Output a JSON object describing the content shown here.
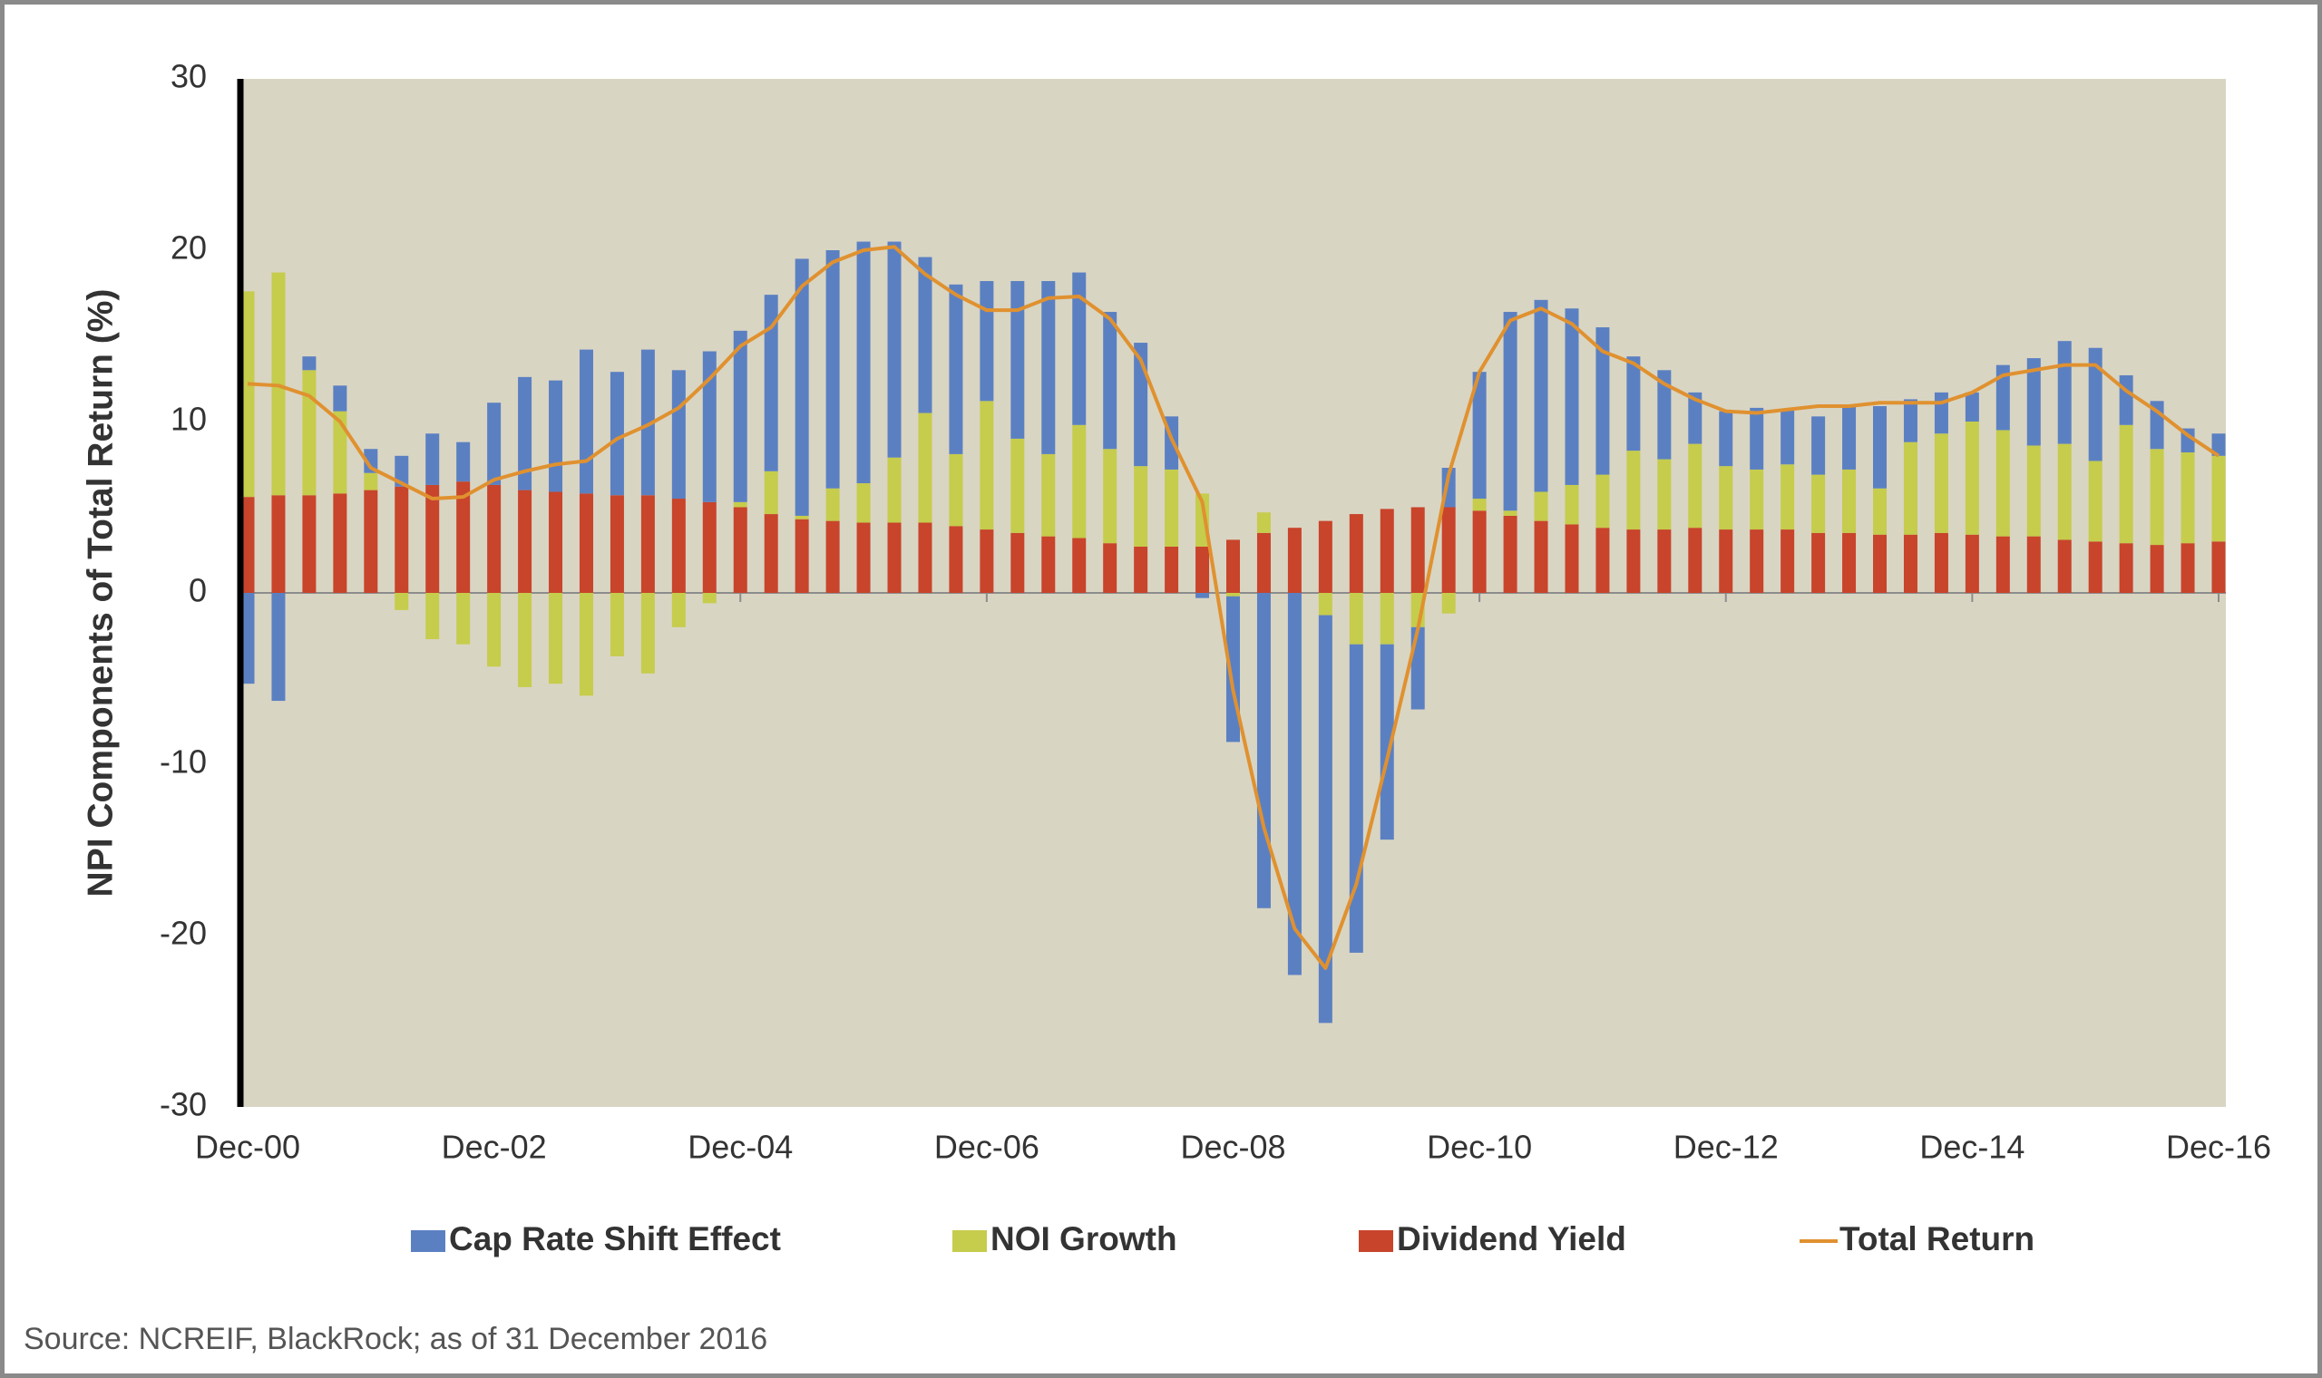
{
  "chart_data": {
    "type": "bar",
    "stacked": true,
    "y_label": "NPI Components of Total Return (%)",
    "source": "Source: NCREIF, BlackRock; as of 31 December 2016",
    "categories": [
      "Dec-00",
      null,
      null,
      null,
      null,
      null,
      null,
      null,
      "Dec-02",
      null,
      null,
      null,
      null,
      null,
      null,
      null,
      "Dec-04",
      null,
      null,
      null,
      null,
      null,
      null,
      null,
      "Dec-06",
      null,
      null,
      null,
      null,
      null,
      null,
      null,
      "Dec-08",
      null,
      null,
      null,
      null,
      null,
      null,
      null,
      "Dec-10",
      null,
      null,
      null,
      null,
      null,
      null,
      null,
      "Dec-12",
      null,
      null,
      null,
      null,
      null,
      null,
      null,
      "Dec-14",
      null,
      null,
      null,
      null,
      null,
      null,
      null,
      "Dec-16"
    ],
    "ylim": [
      -30,
      30
    ],
    "yticks": [
      -30,
      -20,
      -10,
      0,
      10,
      20,
      30
    ],
    "grid": false,
    "legend": "bottom",
    "background": "#d9d5c3",
    "series": [
      {
        "name": "Cap Rate Shift Effect",
        "color": "#5b80c2",
        "type": "bar",
        "stack_order": 2,
        "values": [
          -5.3,
          -6.3,
          0.8,
          1.5,
          1.4,
          1.8,
          3.0,
          2.3,
          4.8,
          6.6,
          6.5,
          8.4,
          7.2,
          8.5,
          7.5,
          8.8,
          10.0,
          10.3,
          15.0,
          13.9,
          14.1,
          12.6,
          9.1,
          9.9,
          7.0,
          9.2,
          10.1,
          8.9,
          8.0,
          7.2,
          3.1,
          -0.3,
          -8.5,
          -18.4,
          -22.3,
          -23.8,
          -18.0,
          -11.4,
          -4.8,
          2.3,
          7.4,
          11.6,
          11.2,
          10.3,
          8.6,
          5.5,
          5.2,
          3.0,
          3.2,
          3.6,
          3.2,
          3.4,
          3.8,
          4.8,
          2.5,
          2.4,
          1.7,
          3.8,
          5.1,
          6.0,
          6.6,
          2.9,
          2.8,
          1.4,
          1.3
        ]
      },
      {
        "name": "NOI Growth",
        "color": "#c6cc4c",
        "type": "bar",
        "stack_order": 1,
        "values": [
          12.0,
          13.0,
          7.3,
          4.8,
          1.0,
          -1.0,
          -2.7,
          -3.0,
          -4.3,
          -5.5,
          -5.3,
          -6.0,
          -3.7,
          -4.7,
          -2.0,
          -0.6,
          0.3,
          2.5,
          0.2,
          1.9,
          2.3,
          3.8,
          6.4,
          4.2,
          7.5,
          5.5,
          4.8,
          6.6,
          5.5,
          4.7,
          4.5,
          3.1,
          -0.2,
          1.2,
          0.0,
          -1.3,
          -3.0,
          -3.0,
          -2.0,
          -1.2,
          0.7,
          0.3,
          1.7,
          2.3,
          3.1,
          4.6,
          4.1,
          4.9,
          3.7,
          3.5,
          3.8,
          3.4,
          3.7,
          2.7,
          5.4,
          5.8,
          6.6,
          6.2,
          5.3,
          5.6,
          4.7,
          6.9,
          5.6,
          5.3,
          5.0
        ]
      },
      {
        "name": "Dividend Yield",
        "color": "#c8442b",
        "type": "bar",
        "stack_order": 0,
        "values": [
          5.6,
          5.7,
          5.7,
          5.8,
          6.0,
          6.2,
          6.3,
          6.5,
          6.3,
          6.0,
          5.9,
          5.8,
          5.7,
          5.7,
          5.5,
          5.3,
          5.0,
          4.6,
          4.3,
          4.2,
          4.1,
          4.1,
          4.1,
          3.9,
          3.7,
          3.5,
          3.3,
          3.2,
          2.9,
          2.7,
          2.7,
          2.7,
          3.1,
          3.5,
          3.8,
          4.2,
          4.6,
          4.9,
          5.0,
          5.0,
          4.8,
          4.5,
          4.2,
          4.0,
          3.8,
          3.7,
          3.7,
          3.8,
          3.7,
          3.7,
          3.7,
          3.5,
          3.5,
          3.4,
          3.4,
          3.5,
          3.4,
          3.3,
          3.3,
          3.1,
          3.0,
          2.9,
          2.8,
          2.9,
          3.0
        ]
      },
      {
        "name": "Total Return",
        "color": "#e0912f",
        "type": "line",
        "values": [
          12.2,
          12.1,
          11.5,
          10.0,
          7.3,
          6.4,
          5.5,
          5.6,
          6.6,
          7.1,
          7.5,
          7.7,
          9.0,
          9.8,
          10.8,
          12.5,
          14.4,
          15.5,
          17.9,
          19.3,
          20.0,
          20.2,
          18.6,
          17.4,
          16.5,
          16.5,
          17.2,
          17.3,
          16.0,
          13.6,
          9.0,
          5.3,
          -5.7,
          -13.7,
          -19.6,
          -21.9,
          -17.0,
          -9.7,
          -2.1,
          6.9,
          12.9,
          15.9,
          16.6,
          15.7,
          14.1,
          13.4,
          12.2,
          11.3,
          10.6,
          10.5,
          10.7,
          10.9,
          10.9,
          11.1,
          11.1,
          11.1,
          11.7,
          12.7,
          13.0,
          13.3,
          13.3,
          11.8,
          10.6,
          9.2,
          8.0
        ]
      }
    ]
  }
}
